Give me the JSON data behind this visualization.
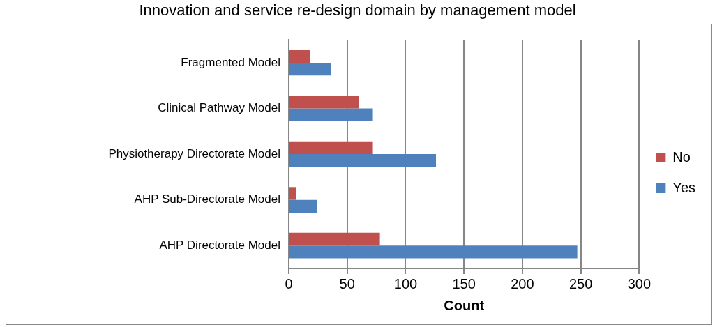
{
  "chart_data": {
    "type": "bar",
    "orientation": "horizontal",
    "title": "Innovation and service re-design domain by management model",
    "categories": [
      "Fragmented Model",
      "Clinical Pathway Model",
      "Physiotherapy Directorate Model",
      "AHP Sub-Directorate Model",
      "AHP Directorate Model"
    ],
    "series": [
      {
        "name": "No",
        "color": "#c0504d",
        "values": [
          18,
          60,
          72,
          6,
          78
        ]
      },
      {
        "name": "Yes",
        "color": "#4f81bd",
        "values": [
          36,
          72,
          126,
          24,
          247
        ]
      }
    ],
    "xlabel": "Count",
    "xlim": [
      0,
      300
    ],
    "xticks": [
      0,
      50,
      100,
      150,
      200,
      250,
      300
    ],
    "grid": "x",
    "legend": "right"
  }
}
